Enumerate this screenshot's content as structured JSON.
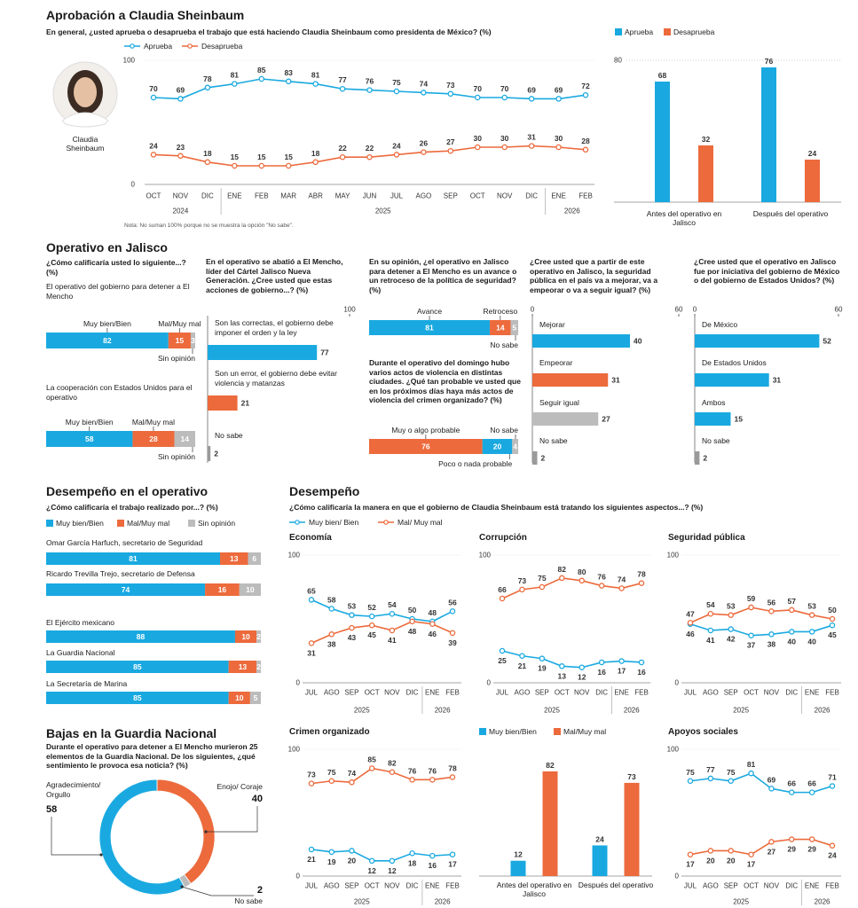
{
  "desempeno": {
    "title": "Desempeño",
    "subtitle": "¿Cómo calificaría la manera en que el gobierno de Claudia Sheinbaum está tratando los siguientes aspectos...? (%)",
    "legend": [
      {
        "name": "Muy bien/ Bien",
        "color": "#19a9e0"
      },
      {
        "name": "Mal/ Muy mal",
        "color": "#ec6a3c"
      }
    ]
  },
  "chart_data": [
    {
      "type": "line",
      "title": "Aprobación a Claudia Sheinbaum",
      "subtitle": "En general, ¿usted aprueba o desaprueba el trabajo que está haciendo Claudia Sheinbaum como presidenta de México? (%)",
      "photo_caption": "Claudia Sheinbaum",
      "note": "Nota: No suman 100% porque no se muestra la opción \"No sabe\".",
      "categories": [
        "OCT",
        "NOV",
        "DIC",
        "ENE",
        "FEB",
        "MAR",
        "ABR",
        "MAY",
        "JUN",
        "JUL",
        "AGO",
        "SEP",
        "OCT",
        "NOV",
        "DIC",
        "ENE",
        "FEB"
      ],
      "years": [
        "2024",
        "2025",
        "2026"
      ],
      "series": [
        {
          "name": "Aprueba",
          "color": "#19a9e0",
          "values": [
            70,
            69,
            78,
            81,
            85,
            83,
            81,
            77,
            76,
            75,
            74,
            73,
            70,
            70,
            69,
            69,
            72
          ]
        },
        {
          "name": "Desaprueba",
          "color": "#ec6a3c",
          "values": [
            24,
            23,
            18,
            15,
            15,
            15,
            18,
            22,
            22,
            24,
            26,
            27,
            30,
            30,
            31,
            30,
            28
          ]
        }
      ],
      "ylim": [
        0,
        100
      ],
      "yticks": [
        0,
        100
      ]
    },
    {
      "type": "bar",
      "categories": [
        "Antes del operativo en Jalisco",
        "Después del operativo"
      ],
      "series": [
        {
          "name": "Aprueba",
          "color": "#19a9e0",
          "values": [
            68,
            76
          ]
        },
        {
          "name": "Desaprueba",
          "color": "#ec6a3c",
          "values": [
            32,
            24
          ]
        }
      ],
      "ylim": [
        0,
        80
      ],
      "yticks": [
        80
      ]
    },
    {
      "type": "stacked_hbar",
      "title": "Operativo en Jalisco",
      "subtitle": "¿Cómo calificaría usted lo siguiente...? (%)",
      "categories": [
        "El operativo del gobierno para detener a El Mencho",
        "La cooperación con Estados Unidos para el operativo"
      ],
      "series": [
        {
          "name": "Muy bien/Bien",
          "color": "#19a9e0",
          "values": [
            82,
            58
          ]
        },
        {
          "name": "Mal/Muy mal",
          "color": "#ec6a3c",
          "values": [
            15,
            28
          ]
        },
        {
          "name": "Sin opinión",
          "color": "#bcbcbc",
          "values": [
            3,
            14
          ]
        }
      ],
      "xlim": [
        0,
        100
      ]
    },
    {
      "type": "hbar",
      "subtitle": "En el operativo se abatió a El Mencho, líder del Cártel Jalisco Nueva Generación. ¿Cree usted que estas acciones de gobierno...? (%)",
      "categories": [
        "Son las correctas, el gobierno debe imponer el orden y la ley",
        "Son un error, el gobierno debe evitar violencia y matanzas",
        "No sabe"
      ],
      "values": [
        77,
        21,
        2
      ],
      "colors": [
        "#19a9e0",
        "#ec6a3c",
        "#9a9a9a"
      ],
      "xlim": [
        0,
        100
      ],
      "xticks": [
        100
      ]
    },
    {
      "type": "stacked_hbar",
      "subtitle": "En su opinión, ¿el operativo en Jalisco para detener a El Mencho es un avance o un retroceso de la política de seguridad? (%)",
      "series": [
        {
          "name": "Avance",
          "color": "#19a9e0",
          "values": [
            81
          ]
        },
        {
          "name": "Retroceso",
          "color": "#ec6a3c",
          "values": [
            14
          ]
        },
        {
          "name": "No sabe",
          "color": "#bcbcbc",
          "values": [
            5
          ]
        }
      ],
      "xlim": [
        0,
        100
      ]
    },
    {
      "type": "stacked_hbar",
      "subtitle": "Durante el operativo del domingo hubo varios actos de violencia en distintas ciudades. ¿Qué tan probable ve usted que en los próximos días haya más actos de violencia del crimen organizado? (%)",
      "series": [
        {
          "name": "Muy o algo probable",
          "color": "#ec6a3c",
          "values": [
            76
          ]
        },
        {
          "name": "Poco o nada probable",
          "color": "#19a9e0",
          "values": [
            20
          ]
        },
        {
          "name": "No sabe",
          "color": "#bcbcbc",
          "values": [
            4
          ]
        }
      ],
      "xlim": [
        0,
        100
      ]
    },
    {
      "type": "hbar",
      "subtitle": "¿Cree usted que a partir de este operativo en Jalisco, la seguridad pública en el país va a mejorar, va a empeorar o va a seguir igual? (%)",
      "categories": [
        "Mejorar",
        "Empeorar",
        "Seguir igual",
        "No sabe"
      ],
      "values": [
        40,
        31,
        27,
        2
      ],
      "colors": [
        "#19a9e0",
        "#ec6a3c",
        "#bcbcbc",
        "#9a9a9a"
      ],
      "xlim": [
        0,
        60
      ],
      "xticks": [
        0,
        60
      ]
    },
    {
      "type": "hbar",
      "subtitle": "¿Cree usted que el operativo en Jalisco fue por iniciativa del gobierno de México o del gobierno de Estados Unidos? (%)",
      "categories": [
        "De México",
        "De Estados Unidos",
        "Ambos",
        "No sabe"
      ],
      "values": [
        52,
        31,
        15,
        2
      ],
      "colors": [
        "#19a9e0",
        "#19a9e0",
        "#19a9e0",
        "#9a9a9a"
      ],
      "xlim": [
        0,
        60
      ],
      "xticks": [
        0,
        60
      ]
    },
    {
      "type": "stacked_hbar",
      "title": "Desempeño en el operativo",
      "subtitle": "¿Cómo calificaría el trabajo realizado por...? (%)",
      "categories": [
        "Omar García Harfuch, secretario de Seguridad",
        "Ricardo Trevilla Trejo, secretario de Defensa",
        "El Ejército mexicano",
        "La Guardia Nacional",
        "La Secretaría de Marina"
      ],
      "series": [
        {
          "name": "Muy bien/Bien",
          "color": "#19a9e0",
          "values": [
            81,
            74,
            88,
            85,
            85
          ]
        },
        {
          "name": "Mal/Muy mal",
          "color": "#ec6a3c",
          "values": [
            13,
            16,
            10,
            13,
            10
          ]
        },
        {
          "name": "Sin opinión",
          "color": "#bcbcbc",
          "values": [
            6,
            10,
            2,
            2,
            5
          ]
        }
      ],
      "xlim": [
        0,
        100
      ]
    },
    {
      "type": "line",
      "title": "Economía",
      "categories": [
        "JUL",
        "AGO",
        "SEP",
        "OCT",
        "NOV",
        "DIC",
        "ENE",
        "FEB"
      ],
      "years": [
        "2025",
        "2026"
      ],
      "series": [
        {
          "color": "#19a9e0",
          "values": [
            65,
            58,
            53,
            52,
            54,
            50,
            48,
            56
          ]
        },
        {
          "color": "#ec6a3c",
          "values": [
            31,
            38,
            43,
            45,
            41,
            48,
            46,
            39
          ]
        }
      ],
      "ylim": [
        0,
        100
      ],
      "yticks": [
        0,
        100
      ]
    },
    {
      "type": "line",
      "title": "Corrupción",
      "categories": [
        "JUL",
        "AGO",
        "SEP",
        "OCT",
        "NOV",
        "DIC",
        "ENE",
        "FEB"
      ],
      "years": [
        "2025",
        "2026"
      ],
      "series": [
        {
          "color": "#19a9e0",
          "values": [
            25,
            21,
            19,
            13,
            12,
            16,
            17,
            16
          ]
        },
        {
          "color": "#ec6a3c",
          "values": [
            66,
            73,
            75,
            82,
            80,
            76,
            74,
            78
          ]
        }
      ],
      "ylim": [
        0,
        100
      ],
      "yticks": [
        0,
        100
      ]
    },
    {
      "type": "line",
      "title": "Seguridad pública",
      "categories": [
        "JUL",
        "AGO",
        "SEP",
        "OCT",
        "NOV",
        "DIC",
        "ENE",
        "FEB"
      ],
      "years": [
        "2025",
        "2026"
      ],
      "series": [
        {
          "color": "#19a9e0",
          "values": [
            46,
            41,
            42,
            37,
            38,
            40,
            40,
            45
          ]
        },
        {
          "color": "#ec6a3c",
          "values": [
            47,
            54,
            53,
            59,
            56,
            57,
            53,
            50
          ]
        }
      ],
      "ylim": [
        0,
        100
      ],
      "yticks": [
        0,
        100
      ]
    },
    {
      "type": "line",
      "title": "Crimen organizado",
      "categories": [
        "JUL",
        "AGO",
        "SEP",
        "OCT",
        "NOV",
        "DIC",
        "ENE",
        "FEB"
      ],
      "years": [
        "2025",
        "2026"
      ],
      "series": [
        {
          "color": "#19a9e0",
          "values": [
            21,
            19,
            20,
            12,
            12,
            18,
            16,
            17
          ]
        },
        {
          "color": "#ec6a3c",
          "values": [
            73,
            75,
            74,
            85,
            82,
            76,
            76,
            78
          ]
        }
      ],
      "ylim": [
        0,
        100
      ],
      "yticks": [
        0,
        100
      ]
    },
    {
      "type": "line",
      "title": "Apoyos sociales",
      "categories": [
        "JUL",
        "AGO",
        "SEP",
        "OCT",
        "NOV",
        "DIC",
        "ENE",
        "FEB"
      ],
      "years": [
        "2025",
        "2026"
      ],
      "series": [
        {
          "color": "#19a9e0",
          "values": [
            75,
            77,
            75,
            81,
            69,
            66,
            66,
            71
          ]
        },
        {
          "color": "#ec6a3c",
          "values": [
            17,
            20,
            20,
            17,
            27,
            29,
            29,
            24
          ]
        }
      ],
      "ylim": [
        0,
        100
      ],
      "yticks": [
        0,
        100
      ]
    },
    {
      "type": "bar",
      "categories": [
        "Antes del operativo en Jalisco",
        "Después del operativo"
      ],
      "series": [
        {
          "name": "Muy bien/Bien",
          "color": "#19a9e0",
          "values": [
            12,
            24
          ]
        },
        {
          "name": "Mal/Muy mal",
          "color": "#ec6a3c",
          "values": [
            82,
            73
          ]
        }
      ],
      "ylim": [
        0,
        100
      ]
    },
    {
      "type": "donut",
      "title": "Bajas en la Guardia Nacional",
      "subtitle": "Durante el operativo para detener a El Mencho murieron 25 elementos de la Guardia Nacional. De los siguientes, ¿qué sentimiento le provoca esa noticia? (%)",
      "categories": [
        "Agradecimiento/ Orgullo",
        "Enojo/ Coraje",
        "No sabe"
      ],
      "values": [
        58,
        40,
        2
      ],
      "colors": [
        "#19a9e0",
        "#ec6a3c",
        "#bcbcbc"
      ]
    }
  ]
}
